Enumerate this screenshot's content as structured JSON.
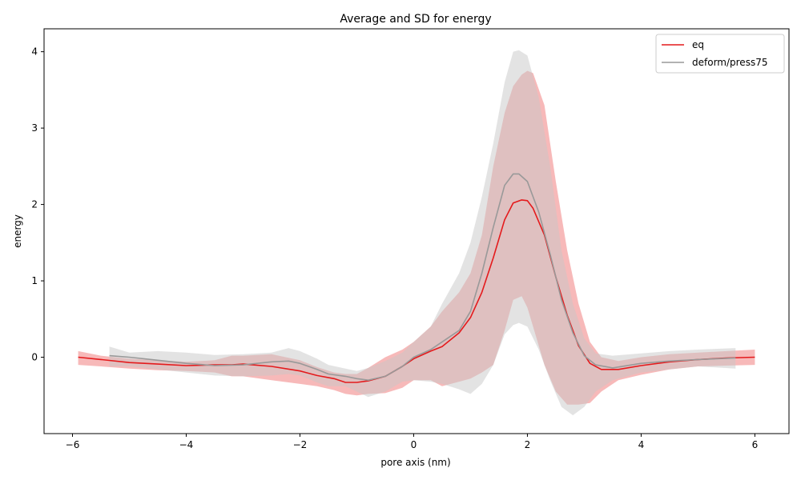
{
  "chart_data": {
    "type": "line",
    "title": "Average and SD for energy",
    "xlabel": "pore axis (nm)",
    "ylabel": "energy",
    "xlim": [
      -6.5,
      6.6
    ],
    "ylim": [
      -1.0,
      4.3
    ],
    "xticks": [
      -6,
      -4,
      -2,
      0,
      2,
      4,
      6
    ],
    "yticks": [
      0,
      1,
      2,
      3,
      4
    ],
    "grid": false,
    "legend_position": "top-right",
    "series": [
      {
        "name": "eq",
        "color": "#e41a1c",
        "band_color": "#f08080",
        "x": [
          -5.9,
          -5.5,
          -5.0,
          -4.5,
          -4.0,
          -3.5,
          -3.2,
          -3.0,
          -2.5,
          -2.0,
          -1.7,
          -1.4,
          -1.2,
          -1.0,
          -0.8,
          -0.5,
          -0.2,
          0.0,
          0.3,
          0.5,
          0.8,
          1.0,
          1.2,
          1.4,
          1.6,
          1.75,
          1.9,
          2.0,
          2.1,
          2.3,
          2.5,
          2.7,
          2.9,
          3.1,
          3.3,
          3.6,
          4.0,
          4.5,
          5.0,
          5.5,
          6.0
        ],
        "values": [
          0.0,
          -0.03,
          -0.07,
          -0.09,
          -0.11,
          -0.1,
          -0.1,
          -0.09,
          -0.12,
          -0.18,
          -0.24,
          -0.28,
          -0.33,
          -0.33,
          -0.31,
          -0.25,
          -0.12,
          -0.02,
          0.08,
          0.14,
          0.32,
          0.52,
          0.85,
          1.3,
          1.8,
          2.02,
          2.06,
          2.05,
          1.95,
          1.6,
          1.05,
          0.55,
          0.15,
          -0.08,
          -0.16,
          -0.16,
          -0.11,
          -0.06,
          -0.03,
          -0.01,
          0.0
        ],
        "upper": [
          0.08,
          0.02,
          -0.02,
          -0.04,
          -0.06,
          -0.04,
          0.02,
          0.02,
          0.04,
          -0.04,
          -0.13,
          -0.2,
          -0.22,
          -0.22,
          -0.14,
          0.0,
          0.1,
          0.2,
          0.4,
          0.6,
          0.85,
          1.1,
          1.6,
          2.5,
          3.2,
          3.55,
          3.7,
          3.75,
          3.72,
          3.3,
          2.3,
          1.4,
          0.7,
          0.2,
          0.0,
          -0.05,
          0.0,
          0.04,
          0.06,
          0.08,
          0.1
        ],
        "lower": [
          -0.1,
          -0.12,
          -0.15,
          -0.17,
          -0.18,
          -0.2,
          -0.25,
          -0.25,
          -0.3,
          -0.35,
          -0.38,
          -0.43,
          -0.48,
          -0.5,
          -0.48,
          -0.47,
          -0.4,
          -0.3,
          -0.3,
          -0.38,
          -0.32,
          -0.28,
          -0.2,
          -0.1,
          0.35,
          0.75,
          0.8,
          0.65,
          0.4,
          -0.1,
          -0.45,
          -0.62,
          -0.62,
          -0.6,
          -0.45,
          -0.3,
          -0.23,
          -0.16,
          -0.12,
          -0.11,
          -0.1
        ]
      },
      {
        "name": "deform/press75",
        "color": "#999999",
        "band_color": "#c8c8c8",
        "x": [
          -5.35,
          -5.0,
          -4.5,
          -4.0,
          -3.5,
          -3.0,
          -2.5,
          -2.2,
          -2.0,
          -1.7,
          -1.5,
          -1.2,
          -1.0,
          -0.8,
          -0.5,
          -0.2,
          0.0,
          0.3,
          0.5,
          0.8,
          1.0,
          1.2,
          1.4,
          1.6,
          1.75,
          1.85,
          2.0,
          2.2,
          2.4,
          2.6,
          2.8,
          3.0,
          3.2,
          3.5,
          4.0,
          4.5,
          5.0,
          5.66
        ],
        "values": [
          0.02,
          0.0,
          -0.04,
          -0.08,
          -0.11,
          -0.1,
          -0.06,
          -0.05,
          -0.08,
          -0.16,
          -0.22,
          -0.25,
          -0.28,
          -0.3,
          -0.25,
          -0.12,
          0.0,
          0.1,
          0.2,
          0.35,
          0.6,
          1.1,
          1.7,
          2.25,
          2.4,
          2.4,
          2.3,
          1.9,
          1.35,
          0.75,
          0.32,
          0.02,
          -0.1,
          -0.14,
          -0.08,
          -0.05,
          -0.03,
          -0.01
        ],
        "upper": [
          0.14,
          0.06,
          0.08,
          0.06,
          0.03,
          0.04,
          0.06,
          0.12,
          0.08,
          -0.02,
          -0.1,
          -0.15,
          -0.18,
          -0.14,
          -0.05,
          0.06,
          0.2,
          0.4,
          0.7,
          1.1,
          1.5,
          2.1,
          2.8,
          3.6,
          4.0,
          4.02,
          3.95,
          3.4,
          2.5,
          1.4,
          0.7,
          0.25,
          0.05,
          0.02,
          0.05,
          0.08,
          0.1,
          0.12
        ],
        "lower": [
          -0.12,
          -0.12,
          -0.16,
          -0.2,
          -0.24,
          -0.25,
          -0.24,
          -0.22,
          -0.24,
          -0.33,
          -0.38,
          -0.38,
          -0.45,
          -0.52,
          -0.45,
          -0.32,
          -0.3,
          -0.32,
          -0.35,
          -0.42,
          -0.48,
          -0.35,
          -0.1,
          0.3,
          0.42,
          0.45,
          0.4,
          0.1,
          -0.3,
          -0.65,
          -0.76,
          -0.65,
          -0.45,
          -0.3,
          -0.2,
          -0.16,
          -0.12,
          -0.15
        ]
      }
    ]
  }
}
